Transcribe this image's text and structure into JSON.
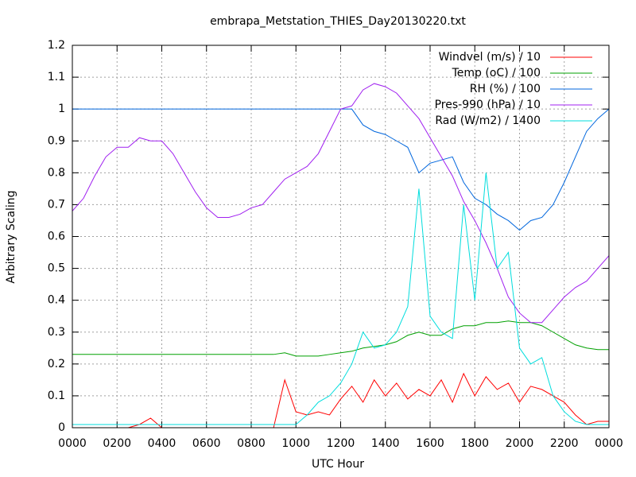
{
  "chart_data": {
    "type": "line",
    "title": "embrapa_Metstation_THIES_Day20130220.txt",
    "xlabel": "UTC Hour",
    "ylabel": "Arbitrary Scaling",
    "x": [
      0,
      0.5,
      1,
      1.5,
      2,
      2.5,
      3,
      3.5,
      4,
      4.5,
      5,
      5.5,
      6,
      6.5,
      7,
      7.5,
      8,
      8.5,
      9,
      9.5,
      10,
      10.5,
      11,
      11.5,
      12,
      12.5,
      13,
      13.5,
      14,
      14.5,
      15,
      15.5,
      16,
      16.5,
      17,
      17.5,
      18,
      18.5,
      19,
      19.5,
      20,
      20.5,
      21,
      21.5,
      22,
      22.5,
      23,
      23.5,
      24
    ],
    "series": [
      {
        "name": "Windvel (m/s) / 10",
        "color": "#ff0000",
        "values": [
          0,
          0,
          0,
          0,
          0,
          0,
          0.01,
          0.03,
          0,
          0,
          0,
          0,
          0,
          0,
          0,
          0,
          0,
          0,
          0,
          0.15,
          0.05,
          0.04,
          0.05,
          0.04,
          0.09,
          0.13,
          0.08,
          0.15,
          0.1,
          0.14,
          0.09,
          0.12,
          0.1,
          0.15,
          0.08,
          0.17,
          0.1,
          0.16,
          0.12,
          0.14,
          0.08,
          0.13,
          0.12,
          0.1,
          0.08,
          0.04,
          0.01,
          0.02,
          0.02
        ]
      },
      {
        "name": "Temp (oC) / 100",
        "color": "#00a000",
        "values": [
          0.23,
          0.23,
          0.23,
          0.23,
          0.23,
          0.23,
          0.23,
          0.23,
          0.23,
          0.23,
          0.23,
          0.23,
          0.23,
          0.23,
          0.23,
          0.23,
          0.23,
          0.23,
          0.23,
          0.235,
          0.225,
          0.225,
          0.225,
          0.23,
          0.235,
          0.24,
          0.25,
          0.255,
          0.26,
          0.27,
          0.29,
          0.3,
          0.29,
          0.29,
          0.31,
          0.32,
          0.32,
          0.33,
          0.33,
          0.335,
          0.33,
          0.33,
          0.32,
          0.3,
          0.28,
          0.26,
          0.25,
          0.245,
          0.245
        ]
      },
      {
        "name": "RH (%) / 100",
        "color": "#0066dd",
        "values": [
          1,
          1,
          1,
          1,
          1,
          1,
          1,
          1,
          1,
          1,
          1,
          1,
          1,
          1,
          1,
          1,
          1,
          1,
          1,
          1,
          1,
          1,
          1,
          1,
          1,
          1,
          0.95,
          0.93,
          0.92,
          0.9,
          0.88,
          0.8,
          0.83,
          0.84,
          0.85,
          0.77,
          0.72,
          0.7,
          0.67,
          0.65,
          0.62,
          0.65,
          0.66,
          0.7,
          0.77,
          0.85,
          0.93,
          0.97,
          1
        ]
      },
      {
        "name": "Pres-990 (hPa) / 10",
        "color": "#a020f0",
        "values": [
          0.68,
          0.72,
          0.79,
          0.85,
          0.88,
          0.88,
          0.91,
          0.9,
          0.9,
          0.86,
          0.8,
          0.74,
          0.69,
          0.66,
          0.66,
          0.67,
          0.69,
          0.7,
          0.74,
          0.78,
          0.8,
          0.82,
          0.86,
          0.93,
          1,
          1.01,
          1.06,
          1.08,
          1.07,
          1.05,
          1.01,
          0.97,
          0.91,
          0.85,
          0.79,
          0.71,
          0.65,
          0.58,
          0.5,
          0.41,
          0.36,
          0.33,
          0.33,
          0.37,
          0.41,
          0.44,
          0.46,
          0.5,
          0.54
        ]
      },
      {
        "name": "Rad (W/m2) / 1400",
        "color": "#00dddd",
        "values": [
          0.01,
          0.01,
          0.01,
          0.01,
          0.01,
          0.01,
          0.01,
          0.01,
          0.01,
          0.01,
          0.01,
          0.01,
          0.01,
          0.01,
          0.01,
          0.01,
          0.01,
          0.01,
          0.01,
          0.01,
          0.01,
          0.04,
          0.08,
          0.1,
          0.14,
          0.2,
          0.3,
          0.25,
          0.26,
          0.3,
          0.38,
          0.75,
          0.35,
          0.3,
          0.28,
          0.7,
          0.4,
          0.8,
          0.5,
          0.55,
          0.25,
          0.2,
          0.22,
          0.1,
          0.05,
          0.02,
          0.01,
          0.01,
          0.01
        ]
      }
    ],
    "xlim": [
      0,
      24
    ],
    "xticks": [
      {
        "value": 0,
        "label": "0000"
      },
      {
        "value": 2,
        "label": "0200"
      },
      {
        "value": 4,
        "label": "0400"
      },
      {
        "value": 6,
        "label": "0600"
      },
      {
        "value": 8,
        "label": "0800"
      },
      {
        "value": 10,
        "label": "1000"
      },
      {
        "value": 12,
        "label": "1200"
      },
      {
        "value": 14,
        "label": "1400"
      },
      {
        "value": 16,
        "label": "1600"
      },
      {
        "value": 18,
        "label": "1800"
      },
      {
        "value": 20,
        "label": "2000"
      },
      {
        "value": 22,
        "label": "2200"
      },
      {
        "value": 24,
        "label": "0000"
      }
    ],
    "ylim": [
      0,
      1.2
    ],
    "yticks": [
      0,
      0.1,
      0.2,
      0.3,
      0.4,
      0.5,
      0.6,
      0.7,
      0.8,
      0.9,
      1,
      1.1,
      1.2
    ],
    "grid": true,
    "legend": "top-right"
  }
}
